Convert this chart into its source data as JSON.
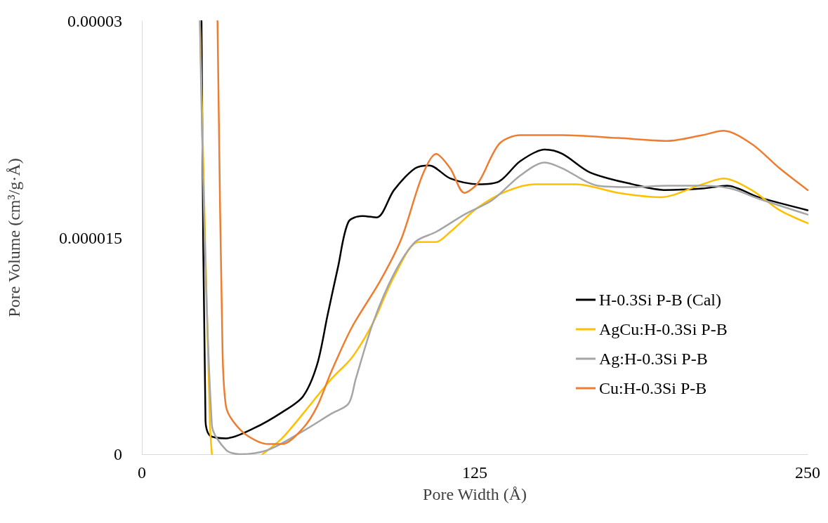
{
  "chart_data": {
    "type": "line",
    "xlabel": "Pore Width (Å)",
    "ylabel": "Pore Volume (cm³/g·Å)",
    "xlim": [
      0,
      250
    ],
    "xticks": [
      0,
      125,
      250
    ],
    "ylim": [
      0,
      3e-05
    ],
    "yticks": [
      0,
      {
        "value": 1.5e-05,
        "label": "0.000015"
      },
      {
        "value": 3e-05,
        "label": "0.00003"
      }
    ],
    "grid": false,
    "legend": "right",
    "marker": "none",
    "line_style": "solid",
    "series": [
      {
        "name": "H-0.3Si P-B (Cal)",
        "color": "#000000",
        "x": [
          22.4,
          23.9,
          25.5,
          31.6,
          42.1,
          52.6,
          60.5,
          65.8,
          69.7,
          73.7,
          77.6,
          82.9,
          88.2,
          94.7,
          102.6,
          107.9,
          115.8,
          126.3,
          134.2,
          142.1,
          151.3,
          157.9,
          168.4,
          184.2,
          196.1,
          210.5,
          219.7,
          231.6,
          250
        ],
        "values": [
          3e-05,
          2.3e-06,
          1.3e-06,
          1.1e-06,
          1.8e-06,
          2.9e-06,
          4e-06,
          6.2e-06,
          9.6e-06,
          1.3e-05,
          1.61e-05,
          1.65e-05,
          1.64e-05,
          1.83e-05,
          1.98e-05,
          2e-05,
          1.91e-05,
          1.87e-05,
          1.89e-05,
          2.03e-05,
          2.11e-05,
          2.08e-05,
          1.95e-05,
          1.87e-05,
          1.83e-05,
          1.84e-05,
          1.86e-05,
          1.78e-05,
          1.69e-05
        ]
      },
      {
        "name": "AgCu:H-0.3Si P-B",
        "color": "#ffc000",
        "x": [
          21.8,
          25.5,
          26.3,
          35,
          45.3,
          52.6,
          60.5,
          71.1,
          78.9,
          86.8,
          94.7,
          103.9,
          110.5,
          115.8,
          126.3,
          136.8,
          147.4,
          163.2,
          178.9,
          194.7,
          210.5,
          218.4,
          228.9,
          239.5,
          250
        ],
        "values": [
          3e-05,
          2.3e-06,
          0,
          null,
          0,
          1.1e-06,
          2.8e-06,
          5.2e-06,
          6.7e-06,
          9.1e-06,
          1.23e-05,
          1.47e-05,
          1.47e-05,
          1.54e-05,
          1.71e-05,
          1.82e-05,
          1.87e-05,
          1.87e-05,
          1.81e-05,
          1.78e-05,
          1.87e-05,
          1.91e-05,
          1.83e-05,
          1.69e-05,
          1.6e-05
        ]
      },
      {
        "name": "Ag:H-0.3Si P-B",
        "color": "#a5a5a5",
        "x": [
          21.8,
          26.3,
          31.6,
          36.8,
          47.4,
          60.5,
          71.1,
          77.6,
          80.3,
          86.8,
          94.7,
          102.6,
          110.5,
          121.1,
          131.6,
          142.1,
          151.3,
          157.9,
          171.1,
          184.2,
          197.4,
          210.5,
          221.1,
          231.6,
          250
        ],
        "values": [
          3e-05,
          2e-06,
          3e-07,
          0,
          3e-07,
          1.6e-06,
          2.8e-06,
          3.5e-06,
          5.2e-06,
          9.1e-06,
          1.25e-05,
          1.47e-05,
          1.54e-05,
          1.66e-05,
          1.76e-05,
          1.93e-05,
          2.02e-05,
          1.98e-05,
          1.86e-05,
          1.85e-05,
          1.86e-05,
          1.86e-05,
          1.84e-05,
          1.77e-05,
          1.66e-05
        ]
      },
      {
        "name": "Cu:H-0.3Si P-B",
        "color": "#ed7d31",
        "x": [
          28.4,
          30.3,
          31.6,
          34.2,
          39.5,
          47.4,
          52.6,
          60.5,
          65.8,
          71.1,
          78.9,
          89.5,
          97.4,
          105.3,
          110.5,
          115.8,
          121.1,
          126.3,
          134.2,
          142.1,
          157.9,
          178.9,
          197.4,
          210.5,
          218.4,
          228.9,
          239.5,
          250
        ],
        "values": [
          3e-05,
          7.1e-06,
          3.3e-06,
          2.3e-06,
          1.3e-06,
          7e-07,
          7e-07,
          1.8e-06,
          3.3e-06,
          5.7e-06,
          8.8e-06,
          1.2e-05,
          1.49e-05,
          1.93e-05,
          2.08e-05,
          1.98e-05,
          1.81e-05,
          1.88e-05,
          2.15e-05,
          2.21e-05,
          2.21e-05,
          2.19e-05,
          2.17e-05,
          2.21e-05,
          2.24e-05,
          2.15e-05,
          1.98e-05,
          1.83e-05
        ]
      }
    ]
  }
}
